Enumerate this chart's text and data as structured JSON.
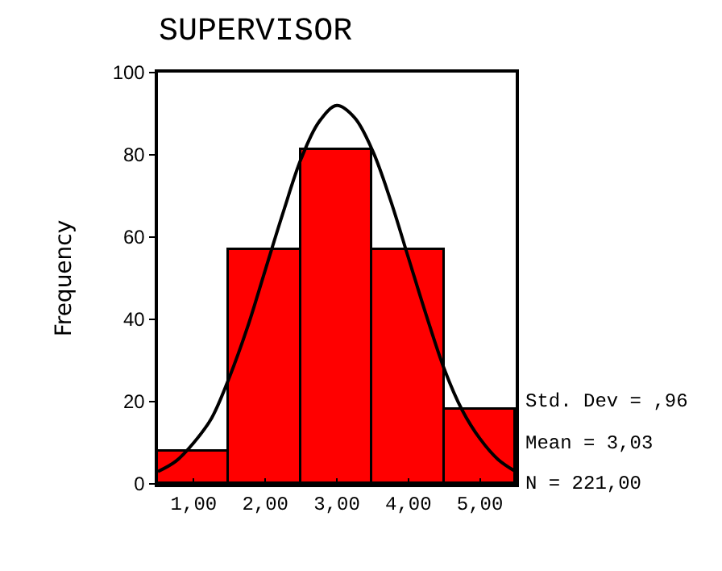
{
  "chart_data": {
    "type": "histogram",
    "title": "SUPERVISOR",
    "ylabel": "Frequency",
    "bins": [
      0.5,
      1.5,
      2.5,
      3.5,
      4.5,
      5.5
    ],
    "values": [
      8,
      57,
      81,
      57,
      18
    ],
    "color": "#ff0000",
    "series": [
      {
        "type": "line",
        "color": "#000000",
        "x": [
          0.5,
          0.75,
          1,
          1.25,
          1.5,
          1.75,
          2,
          2.25,
          2.5,
          2.75,
          3,
          3.25,
          3.5,
          3.75,
          4,
          4.25,
          4.5,
          4.75,
          5,
          5.25,
          5.5
        ],
        "values": [
          3,
          5.5,
          10,
          16,
          26,
          38,
          52,
          66,
          79,
          88,
          92,
          89,
          81,
          69,
          55,
          41,
          28,
          18,
          11,
          6,
          3
        ]
      }
    ],
    "xlim": [
      0.5,
      5.5
    ],
    "xticks": [
      {
        "value": 1,
        "label": "1,00"
      },
      {
        "value": 2,
        "label": "2,00"
      },
      {
        "value": 3,
        "label": "3,00"
      },
      {
        "value": 4,
        "label": "4,00"
      },
      {
        "value": 5,
        "label": "5,00"
      }
    ],
    "ylim": [
      0,
      100
    ],
    "yticks": [
      0,
      20,
      40,
      60,
      80,
      100
    ],
    "annotations": [
      "Std. Dev = ,96",
      "Mean = 3,03",
      "N = 221,00"
    ],
    "grid": false
  }
}
